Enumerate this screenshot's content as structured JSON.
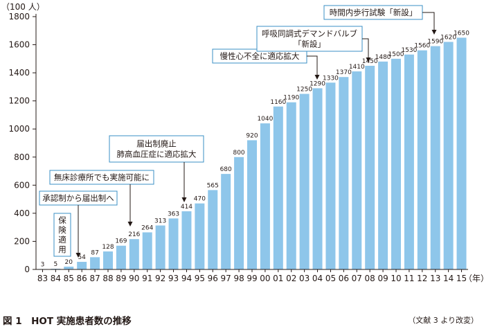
{
  "chart_data": {
    "type": "bar",
    "ylabel": "（100 人）",
    "x_unit": "（年）",
    "ylim": [
      0,
      1800
    ],
    "yticks": [
      0,
      200,
      400,
      600,
      800,
      1000,
      1200,
      1400,
      1600,
      1800
    ],
    "grid": false,
    "categories": [
      "83",
      "84",
      "85",
      "86",
      "87",
      "88",
      "89",
      "90",
      "91",
      "92",
      "93",
      "94",
      "95",
      "96",
      "97",
      "98",
      "99",
      "00",
      "01",
      "02",
      "03",
      "04",
      "05",
      "06",
      "07",
      "08",
      "09",
      "10",
      "11",
      "12",
      "13",
      "14",
      "15"
    ],
    "values": [
      3,
      5,
      20,
      54,
      87,
      128,
      169,
      216,
      264,
      313,
      363,
      414,
      470,
      565,
      680,
      800,
      920,
      1040,
      1160,
      1190,
      1250,
      1290,
      1330,
      1370,
      1410,
      1450,
      1480,
      1500,
      1530,
      1560,
      1590,
      1620,
      1650
    ],
    "bar_color": "#8ec6ea",
    "annotations": [
      {
        "id": "hoken",
        "text": [
          "保",
          "険",
          "適",
          "用"
        ],
        "year": "86",
        "vertical": true
      },
      {
        "id": "shonin",
        "text": [
          "承認制から届出制へ"
        ],
        "year": "86"
      },
      {
        "id": "mushou",
        "text": [
          "無床診療所でも実施可能に"
        ],
        "year": "90"
      },
      {
        "id": "todokede",
        "text": [
          "届出制廃止",
          "肺高血圧症に適応拡大"
        ],
        "year": "94"
      },
      {
        "id": "mansei",
        "text": [
          "慢性心不全に適応拡大"
        ],
        "year": "04"
      },
      {
        "id": "kokyuu",
        "text": [
          "呼吸同調式デマンドバルブ",
          "「新設」"
        ],
        "year": "08"
      },
      {
        "id": "jikan",
        "text": [
          "時間内歩行試験「新設」"
        ],
        "year": "13"
      }
    ]
  },
  "figure": {
    "title": "図 1　HOT 実施患者数の推移",
    "note": "（文献 3 より改変）"
  }
}
